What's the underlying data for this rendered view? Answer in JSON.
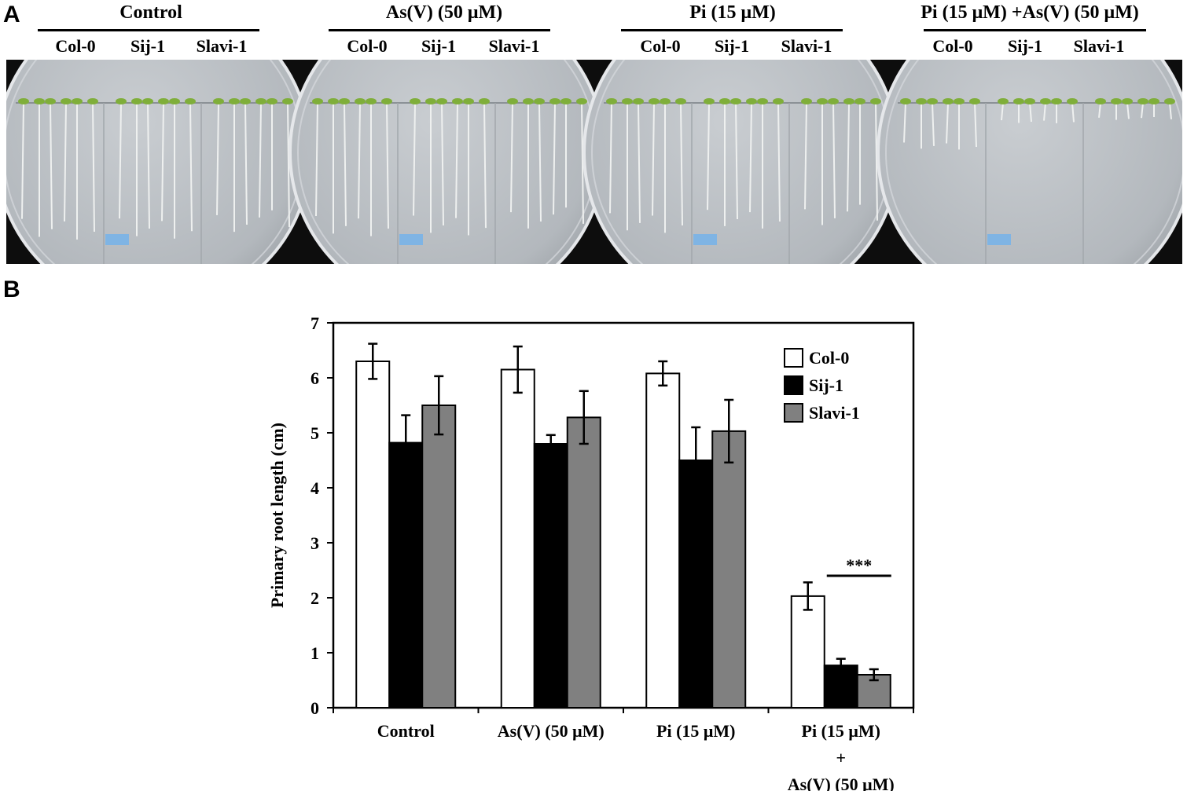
{
  "panel_a": {
    "letter": "A",
    "conditions": [
      {
        "title": "Control",
        "genotypes": [
          "Col-0",
          "Sij-1",
          "Slavi-1"
        ],
        "root_lengths": [
          0.82,
          0.8,
          0.76
        ]
      },
      {
        "title": "As(V) (50 μM)",
        "genotypes": [
          "Col-0",
          "Sij-1",
          "Slavi-1"
        ],
        "root_lengths": [
          0.8,
          0.78,
          0.74
        ]
      },
      {
        "title": "Pi (15 μM)",
        "genotypes": [
          "Col-0",
          "Sij-1",
          "Slavi-1"
        ],
        "root_lengths": [
          0.78,
          0.74,
          0.72
        ]
      },
      {
        "title": "Pi (15 μM) +As(V) (50 μM)",
        "genotypes": [
          "Col-0",
          "Sij-1",
          "Slavi-1"
        ],
        "root_lengths": [
          0.28,
          0.12,
          0.1
        ]
      }
    ]
  },
  "panel_b": {
    "letter": "B"
  },
  "chart_data": {
    "type": "bar",
    "categories": [
      "Control",
      "As(V) (50 μM)",
      "Pi (15 μM)",
      "Pi (15 μM) + As(V) (50 μM)"
    ],
    "category_label_lines": [
      [
        "Control"
      ],
      [
        "As(V) (50 μM)"
      ],
      [
        "Pi (15 μM)"
      ],
      [
        "Pi (15 μM)",
        "+",
        "As(V) (50 μM)"
      ]
    ],
    "series": [
      {
        "name": "Col-0",
        "values": [
          6.3,
          6.15,
          6.08,
          2.03
        ],
        "errors": [
          0.32,
          0.42,
          0.22,
          0.25
        ],
        "color": "#ffffff"
      },
      {
        "name": "Sij-1",
        "values": [
          4.82,
          4.8,
          4.5,
          0.77
        ],
        "errors": [
          0.5,
          0.16,
          0.6,
          0.12
        ],
        "color": "#000000"
      },
      {
        "name": "Slavi-1",
        "values": [
          5.5,
          5.28,
          5.03,
          0.6
        ],
        "errors": [
          0.53,
          0.48,
          0.57,
          0.1
        ],
        "color": "#808080"
      }
    ],
    "ylabel": "Primary root length (cm)",
    "xlabel": "",
    "ylim": [
      0,
      7
    ],
    "yticks": [
      0,
      1,
      2,
      3,
      4,
      5,
      6,
      7
    ],
    "grid": false,
    "legend_position": "top-right",
    "annotations": [
      {
        "text": "***",
        "category_index": 3,
        "y": 2.4
      }
    ]
  }
}
